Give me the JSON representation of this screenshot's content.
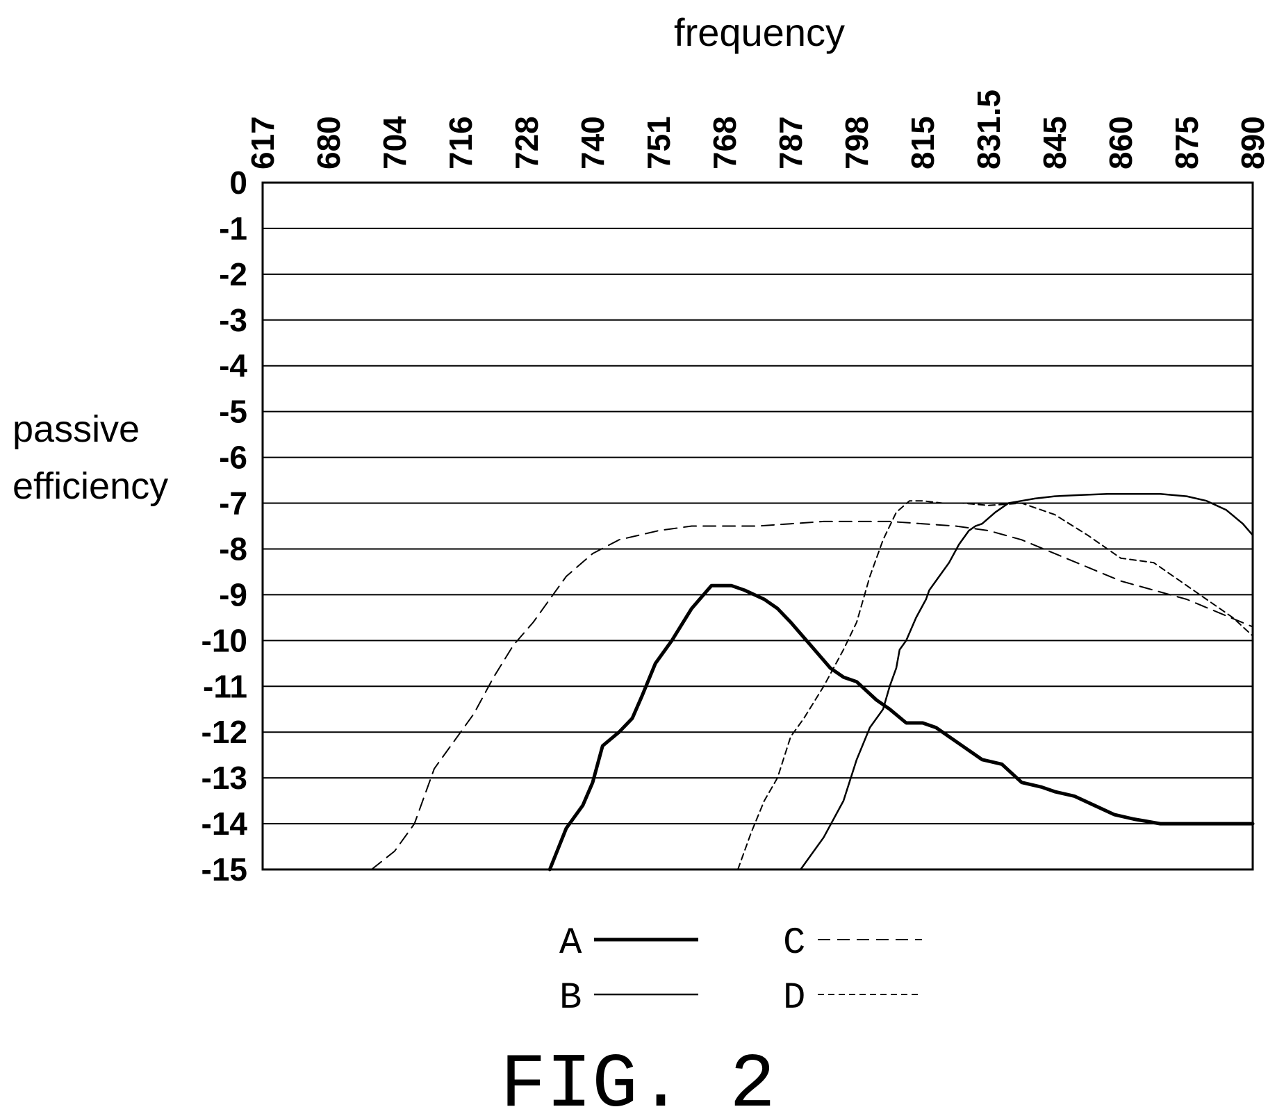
{
  "figure_label": "FIG. 2",
  "chart_data": {
    "type": "line",
    "xlabel": "frequency",
    "ylabel": [
      "passive",
      "efficiency"
    ],
    "categories": [
      "617",
      "680",
      "704",
      "716",
      "728",
      "740",
      "751",
      "768",
      "787",
      "798",
      "815",
      "831.5",
      "845",
      "860",
      "875",
      "890"
    ],
    "yticks": [
      0,
      -1,
      -2,
      -3,
      -4,
      -5,
      -6,
      -7,
      -8,
      -9,
      -10,
      -11,
      -12,
      -13,
      -14,
      -15
    ],
    "ylim": [
      -15,
      0
    ],
    "grid": "horizontal",
    "x_axis_position": "top",
    "legend_position": "bottom",
    "series": [
      {
        "name": "A",
        "style": "thick-solid",
        "x": [
          4.35,
          4.6,
          4.85,
          5.0,
          5.15,
          5.4,
          5.6,
          5.75,
          5.95,
          6.2,
          6.5,
          6.8,
          7.1,
          7.3,
          7.45,
          7.6,
          7.8,
          8.0,
          8.3,
          8.6,
          8.8,
          9.0,
          9.3,
          9.5,
          9.75,
          10.0,
          10.2,
          10.4,
          10.6,
          10.9,
          11.2,
          11.5,
          11.8,
          12.0,
          12.3,
          12.6,
          12.9,
          13.2,
          13.6,
          14.0,
          14.3,
          14.6,
          15.0
        ],
        "y": [
          -15,
          -14.1,
          -13.6,
          -13.1,
          -12.3,
          -12.0,
          -11.7,
          -11.2,
          -10.5,
          -10.0,
          -9.3,
          -8.8,
          -8.8,
          -8.9,
          -9.0,
          -9.1,
          -9.3,
          -9.6,
          -10.1,
          -10.6,
          -10.8,
          -10.9,
          -11.3,
          -11.5,
          -11.8,
          -11.8,
          -11.9,
          -12.1,
          -12.3,
          -12.6,
          -12.7,
          -13.1,
          -13.2,
          -13.3,
          -13.4,
          -13.6,
          -13.8,
          -13.9,
          -14.0,
          -14.0,
          -14.0,
          -14.0,
          -14.0
        ]
      },
      {
        "name": "B",
        "style": "thin-solid",
        "x": [
          8.15,
          8.5,
          8.8,
          9.0,
          9.2,
          9.4,
          9.5,
          9.6,
          9.65,
          9.75,
          9.9,
          10.05,
          10.1,
          10.2,
          10.4,
          10.55,
          10.7,
          10.8,
          10.9,
          11.1,
          11.3,
          11.5,
          11.7,
          12.0,
          12.4,
          12.8,
          13.2,
          13.6,
          14.0,
          14.3,
          14.6,
          14.85,
          15.0
        ],
        "y": [
          -15,
          -14.3,
          -13.5,
          -12.6,
          -11.9,
          -11.5,
          -11.0,
          -10.6,
          -10.2,
          -10.0,
          -9.5,
          -9.1,
          -8.9,
          -8.7,
          -8.3,
          -7.9,
          -7.6,
          -7.5,
          -7.45,
          -7.2,
          -7.0,
          -6.95,
          -6.9,
          -6.85,
          -6.82,
          -6.8,
          -6.8,
          -6.8,
          -6.85,
          -6.95,
          -7.15,
          -7.45,
          -7.7
        ]
      },
      {
        "name": "C",
        "style": "dash",
        "x": [
          1.65,
          2.0,
          2.3,
          2.6,
          2.9,
          3.2,
          3.5,
          3.8,
          4.1,
          4.3,
          4.6,
          5.0,
          5.4,
          6.0,
          6.5,
          7.0,
          7.5,
          8.0,
          8.5,
          9.0,
          9.5,
          10.0,
          10.5,
          11.0,
          11.5,
          12.0,
          12.5,
          13.0,
          13.5,
          14.0,
          14.5,
          15.0
        ],
        "y": [
          -15,
          -14.6,
          -14.0,
          -12.8,
          -12.2,
          -11.6,
          -10.8,
          -10.1,
          -9.6,
          -9.2,
          -8.6,
          -8.1,
          -7.8,
          -7.6,
          -7.5,
          -7.5,
          -7.5,
          -7.45,
          -7.4,
          -7.4,
          -7.4,
          -7.45,
          -7.5,
          -7.6,
          -7.8,
          -8.1,
          -8.4,
          -8.7,
          -8.9,
          -9.1,
          -9.4,
          -9.7
        ]
      },
      {
        "name": "D",
        "style": "short-dash",
        "x": [
          7.2,
          7.4,
          7.6,
          7.8,
          8.0,
          8.2,
          8.5,
          8.8,
          9.0,
          9.2,
          9.4,
          9.6,
          9.8,
          10.0,
          10.3,
          10.6,
          11.0,
          11.5,
          12.0,
          12.5,
          13.0,
          13.5,
          13.9,
          14.3,
          14.7,
          15.0
        ],
        "y": [
          -15,
          -14.2,
          -13.5,
          -13.0,
          -12.1,
          -11.7,
          -11.0,
          -10.2,
          -9.6,
          -8.6,
          -7.8,
          -7.2,
          -6.95,
          -6.95,
          -7.0,
          -7.0,
          -7.05,
          -7.0,
          -7.25,
          -7.7,
          -8.2,
          -8.3,
          -8.7,
          -9.1,
          -9.5,
          -9.9
        ]
      }
    ]
  }
}
